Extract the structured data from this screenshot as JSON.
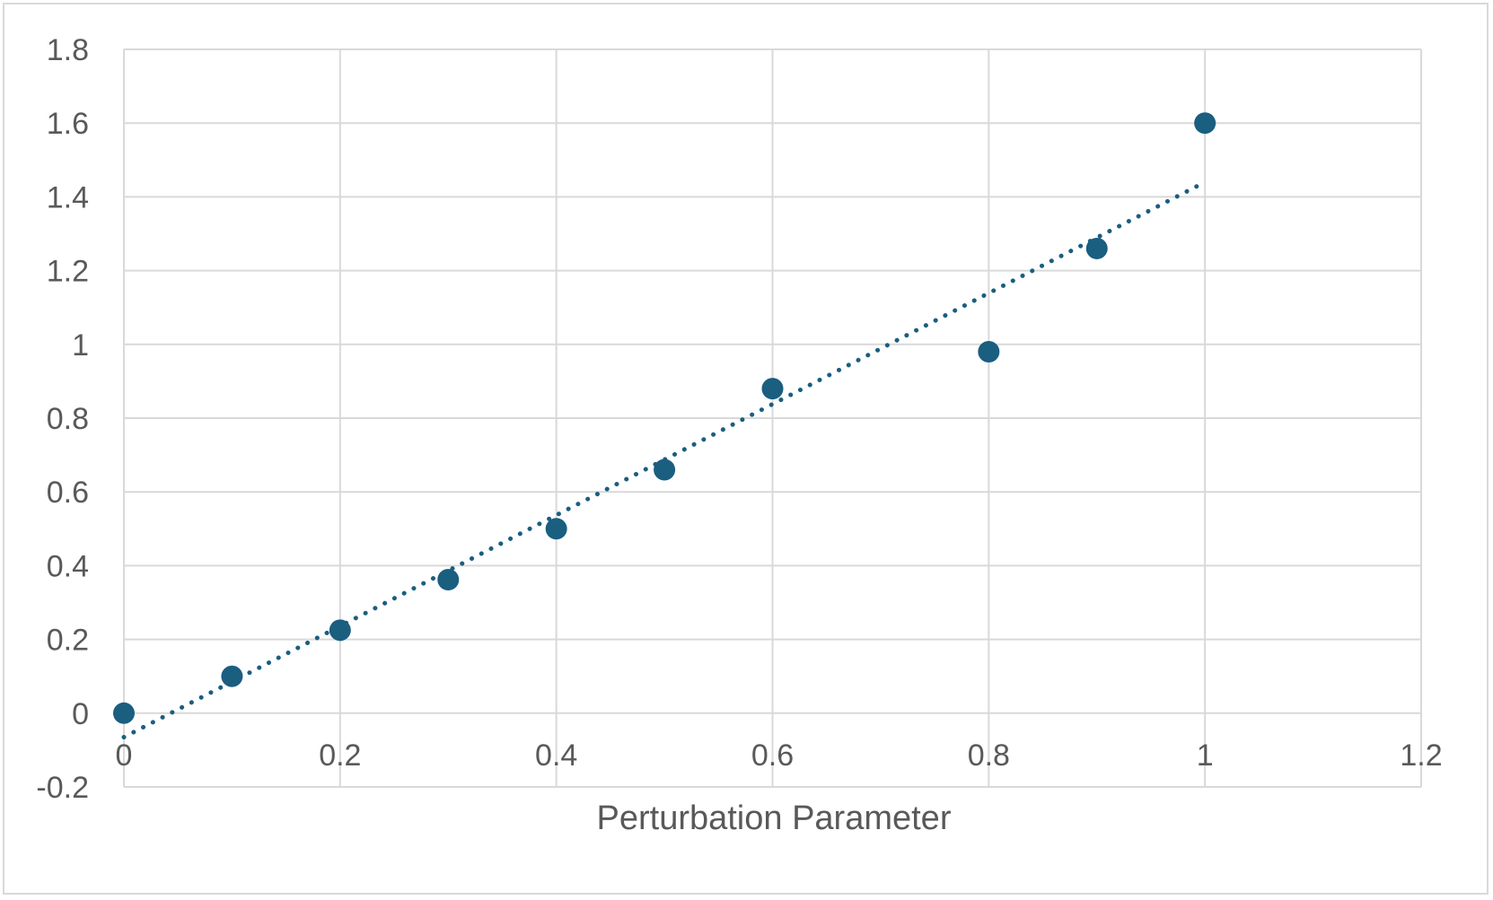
{
  "chart_data": {
    "type": "scatter",
    "title": "",
    "xlabel": "Perturbation Parameter",
    "ylabel": "",
    "xlim": [
      0,
      1.2
    ],
    "ylim": [
      -0.2,
      1.8
    ],
    "x_ticks": [
      0,
      0.2,
      0.4,
      0.6,
      0.8,
      1,
      1.2
    ],
    "x_tick_labels": [
      "0",
      "0.2",
      "0.4",
      "0.6",
      "0.8",
      "1",
      "1.2"
    ],
    "y_ticks": [
      -0.2,
      0,
      0.2,
      0.4,
      0.6,
      0.8,
      1,
      1.2,
      1.4,
      1.6,
      1.8
    ],
    "y_tick_labels": [
      "-0.2",
      "0",
      "0.2",
      "0.4",
      "0.6",
      "0.8",
      "1",
      "1.2",
      "1.4",
      "1.6",
      "1.8"
    ],
    "grid": true,
    "legend": "none",
    "series": [
      {
        "color": "#1a5e80",
        "x": [
          0,
          0.1,
          0.2,
          0.3,
          0.4,
          0.5,
          0.6,
          0.8,
          0.9,
          1.0
        ],
        "y": [
          0,
          0.1,
          0.225,
          0.362,
          0.5,
          0.66,
          0.88,
          0.98,
          1.26,
          1.6
        ]
      }
    ],
    "trendline": {
      "type": "linear",
      "style": "dotted",
      "color": "#1a5e80",
      "x": [
        0,
        1.0
      ],
      "y": [
        -0.065,
        1.44
      ]
    }
  }
}
